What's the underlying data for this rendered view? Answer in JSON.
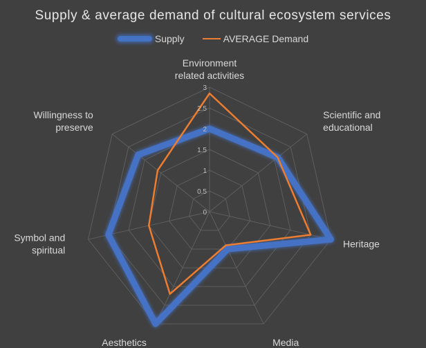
{
  "chart_data": {
    "type": "radar",
    "title": "Supply & average demand of cultural ecosystem services",
    "categories": [
      [
        "Environment",
        "related activities"
      ],
      [
        "Scientific and",
        "educational"
      ],
      [
        "Heritage"
      ],
      [
        "Media"
      ],
      [
        "Aesthetics"
      ],
      [
        "Symbol and",
        "spiritual"
      ],
      [
        "Willingness to",
        "preserve"
      ]
    ],
    "ticks": [
      "0",
      "0.5",
      "1",
      "1.5",
      "2",
      "2.5",
      "3"
    ],
    "rlim": [
      0,
      3
    ],
    "legend_position": "top",
    "series": [
      {
        "name": "Supply",
        "color": "#4472c4",
        "values": [
          2.0,
          2.1,
          3.0,
          1.0,
          3.0,
          2.5,
          2.2
        ]
      },
      {
        "name": "AVERAGE Demand",
        "color": "#ed7d31",
        "values": [
          2.85,
          2.1,
          2.5,
          0.9,
          2.2,
          1.5,
          1.6
        ]
      }
    ]
  }
}
